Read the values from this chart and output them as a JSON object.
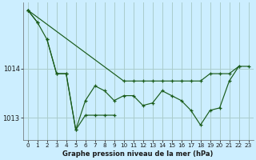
{
  "bg_color": "#cceeff",
  "grid_color": "#aacccc",
  "line_color": "#1a5c1a",
  "xlabel": "Graphe pression niveau de la mer (hPa)",
  "xlim": [
    -0.5,
    23.5
  ],
  "ylim": [
    1012.55,
    1015.35
  ],
  "yticks": [
    1013,
    1014
  ],
  "ytick_labels": [
    "1013",
    "1014"
  ],
  "xticks": [
    0,
    1,
    2,
    3,
    4,
    5,
    6,
    7,
    8,
    9,
    10,
    11,
    12,
    13,
    14,
    15,
    16,
    17,
    18,
    19,
    20,
    21,
    22,
    23
  ],
  "series": [
    {
      "x": [
        0,
        1
      ],
      "y": [
        1015.2,
        1014.95
      ]
    },
    {
      "x": [
        2,
        3,
        4,
        5,
        6,
        7,
        8,
        9
      ],
      "y": [
        1014.6,
        1013.9,
        1013.9,
        1012.75,
        1013.05,
        1013.05,
        1013.05,
        1013.05
      ]
    },
    {
      "x": [
        0,
        1,
        2,
        3,
        4,
        5,
        6,
        7,
        8,
        9,
        10,
        11,
        12,
        13,
        14,
        15,
        16,
        17,
        18,
        19,
        20,
        21,
        22
      ],
      "y": [
        1015.2,
        1014.95,
        1014.6,
        1013.9,
        1013.9,
        1012.75,
        1013.35,
        1013.65,
        1013.55,
        1013.35,
        1013.45,
        1013.45,
        1013.25,
        1013.3,
        1013.55,
        1013.45,
        1013.35,
        1013.15,
        1012.85,
        1013.15,
        1013.2,
        1013.75,
        1014.05
      ]
    },
    {
      "x": [
        0,
        10,
        11,
        12,
        13,
        14,
        15,
        16,
        17,
        18,
        19,
        20,
        21,
        22,
        23
      ],
      "y": [
        1015.2,
        1013.75,
        1013.75,
        1013.75,
        1013.75,
        1013.75,
        1013.75,
        1013.75,
        1013.75,
        1013.75,
        1013.9,
        1013.9,
        1013.9,
        1014.05,
        1014.05
      ]
    }
  ]
}
